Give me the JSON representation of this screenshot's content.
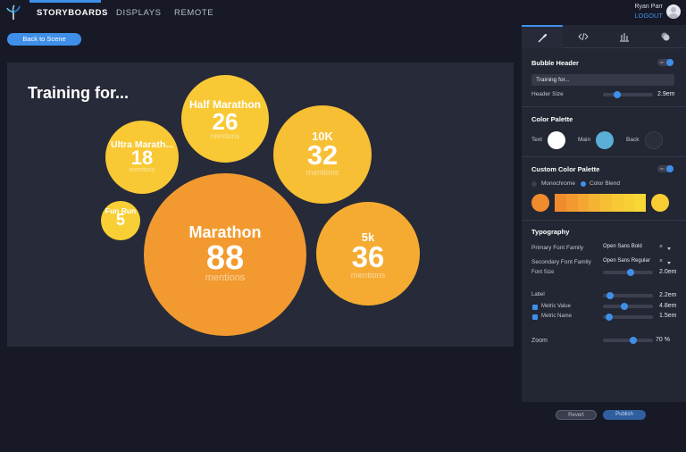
{
  "nav": {
    "tabs": [
      "STORYBOARDS",
      "DISPLAYS",
      "REMOTE"
    ],
    "user_name": "Ryan Parr",
    "logout": "LOGOUT"
  },
  "toolbar": {
    "back_label": "Back to Scene"
  },
  "bubble_chart": {
    "header": "Training for...",
    "bubbles": [
      {
        "label": "Half Marathon",
        "value": "26",
        "name": "mentions"
      },
      {
        "label": "Ultra Marath...",
        "value": "18",
        "name": "mentions"
      },
      {
        "label": "10K",
        "value": "32",
        "name": "mentions"
      },
      {
        "label": "Fun Run",
        "value": "5",
        "name": ""
      },
      {
        "label": "Marathon",
        "value": "88",
        "name": "mentions"
      },
      {
        "label": "5k",
        "value": "36",
        "name": "mentions"
      }
    ]
  },
  "panel": {
    "tab_icons": [
      "brush-icon",
      "code-icon",
      "chart-icon",
      "layers-icon"
    ],
    "bubble_header": {
      "title": "Bubble Header",
      "toggle": "on",
      "input_value": "Training for...",
      "size_label": "Header Size",
      "size_value": "2.9em"
    },
    "color_palette": {
      "title": "Color Palette",
      "text": "Text",
      "main": "Main",
      "back": "Back",
      "colors": {
        "text": "#ffffff",
        "main": "#5aafd6",
        "back": "#2a2d3a"
      }
    },
    "custom_palette": {
      "title": "Custom Color Palette",
      "toggle": "on",
      "monochrome": "Monochrome",
      "color_blend": "Color Blend",
      "start_color": "#f08c2e",
      "end_color": "#f7cd33",
      "blend": [
        "#f08c2e",
        "#f29a30",
        "#f4a732",
        "#f5b333",
        "#f6bf34",
        "#f7c935",
        "#f7d035",
        "#f7d736"
      ]
    },
    "typography": {
      "title": "Typography",
      "primary_label": "Primary Font Family",
      "primary_value": "Open Sans Bold",
      "secondary_label": "Secondary Font Family",
      "secondary_value": "Open Sans Regular",
      "font_size_label": "Font Size",
      "font_size_value": "2.0em",
      "label_label": "Label",
      "label_value": "2.2em",
      "metric_value_label": "Metric Value",
      "metric_value_value": "4.8em",
      "metric_name_label": "Metric Name",
      "metric_name_value": "1.5em"
    },
    "zoom": {
      "label": "Zoom",
      "value": "70 %"
    },
    "revert": "Revert",
    "publish": "Publish"
  },
  "colors": {
    "accent": "#3f8fe9",
    "bubble_dark": "#f08c2e",
    "bubble_light": "#f8c935"
  }
}
